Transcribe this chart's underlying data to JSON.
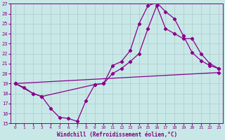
{
  "xlabel": "Windchill (Refroidissement éolien,°C)",
  "background_color": "#c8e8e8",
  "grid_color": "#b0c8c8",
  "line_color": "#880088",
  "xlim": [
    -0.5,
    23.5
  ],
  "ylim": [
    15,
    27
  ],
  "xticks": [
    0,
    1,
    2,
    3,
    4,
    5,
    6,
    7,
    8,
    9,
    10,
    11,
    12,
    13,
    14,
    15,
    16,
    17,
    18,
    19,
    20,
    21,
    22,
    23
  ],
  "yticks": [
    15,
    16,
    17,
    18,
    19,
    20,
    21,
    22,
    23,
    24,
    25,
    26,
    27
  ],
  "line1_x": [
    0,
    1,
    2,
    3,
    4,
    5,
    6,
    7,
    8,
    9,
    10,
    11,
    12,
    13,
    14,
    15,
    16,
    17,
    18,
    19,
    20,
    21,
    22,
    23
  ],
  "line1_y": [
    19,
    18.6,
    18.0,
    17.7,
    16.5,
    15.6,
    15.5,
    15.2,
    17.3,
    18.9,
    19.0,
    20.8,
    21.2,
    22.3,
    25.0,
    26.8,
    27.1,
    26.2,
    25.5,
    23.8,
    22.1,
    21.3,
    20.8,
    20.5
  ],
  "line2_x": [
    0,
    2,
    3,
    9,
    10,
    11,
    12,
    13,
    14,
    15,
    16,
    17,
    18,
    19,
    20,
    21,
    22,
    23
  ],
  "line2_y": [
    19,
    18.0,
    17.7,
    18.9,
    19.0,
    20.0,
    20.5,
    21.2,
    22.0,
    24.5,
    26.8,
    24.5,
    24.0,
    23.5,
    23.5,
    22.0,
    21.0,
    20.5
  ],
  "line3_x": [
    0,
    23
  ],
  "line3_y": [
    19,
    20.1
  ]
}
